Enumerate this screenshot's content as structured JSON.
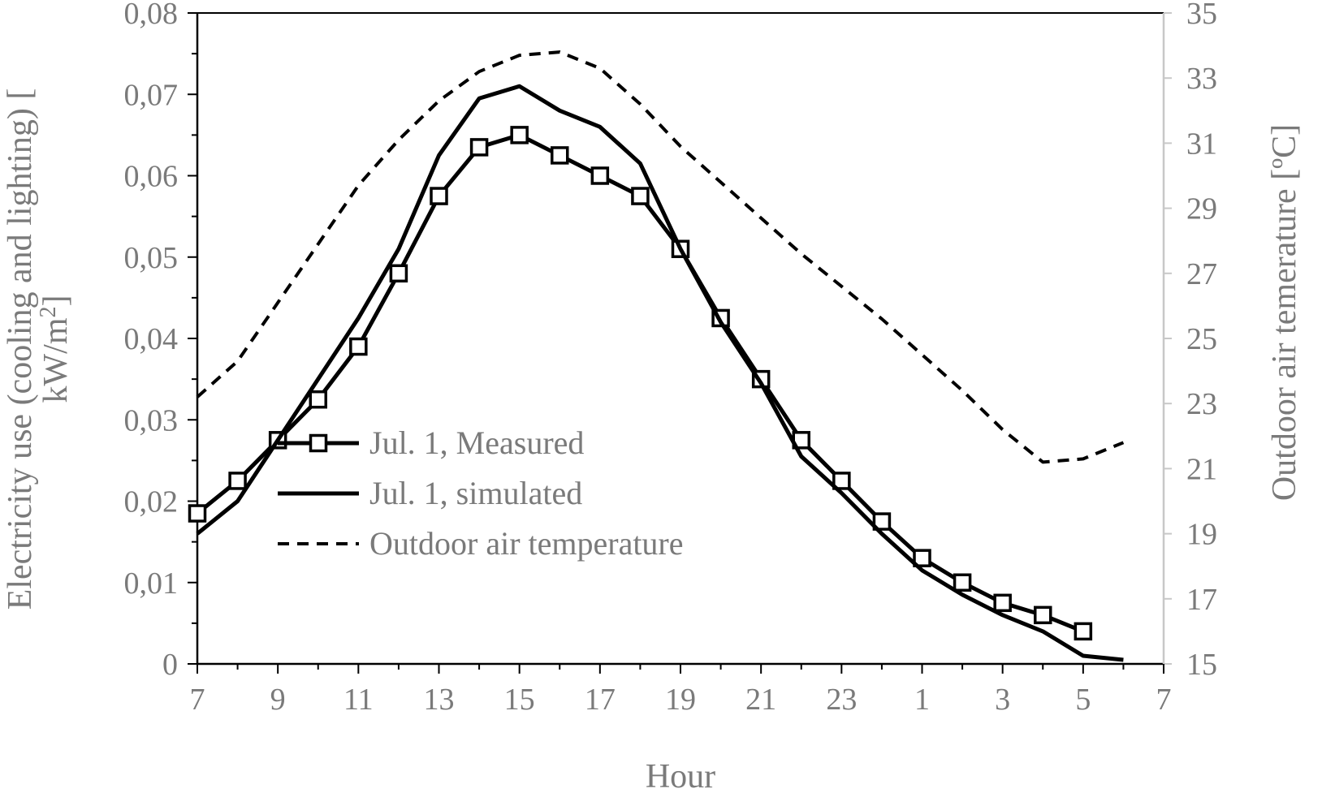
{
  "chart_data": {
    "type": "line",
    "xlabel": "Hour",
    "x_tick_labels": [
      "7",
      "9",
      "11",
      "13",
      "15",
      "17",
      "19",
      "21",
      "23",
      "1",
      "3",
      "5",
      "7"
    ],
    "y_left": {
      "label_line1": "Electricity use (cooling and lighting) [",
      "label_line2_prefix": "kW/m",
      "label_line2_sup": "2",
      "label_line2_suffix": "]",
      "range": [
        0,
        0.08
      ],
      "tick_labels": [
        "0",
        "0,01",
        "0,02",
        "0,03",
        "0,04",
        "0,05",
        "0,06",
        "0,07",
        "0,08"
      ]
    },
    "y_right": {
      "label": "Outdoor air temerature [ºC]",
      "range": [
        15,
        35
      ],
      "tick_labels": [
        "15",
        "17",
        "19",
        "21",
        "23",
        "25",
        "27",
        "29",
        "31",
        "33",
        "35"
      ]
    },
    "legend": {
      "placement": "center-left"
    },
    "series": [
      {
        "name": "Jul. 1, Measured",
        "axis": "left",
        "style": "solid-square-markers",
        "x": [
          7,
          8,
          9,
          10,
          11,
          12,
          13,
          14,
          15,
          16,
          17,
          18,
          19,
          20,
          21,
          22,
          23,
          24,
          25,
          26,
          27,
          28,
          29
        ],
        "values": [
          0.0185,
          0.0225,
          0.0275,
          0.0325,
          0.039,
          0.048,
          0.0575,
          0.0635,
          0.065,
          0.0625,
          0.06,
          0.0575,
          0.051,
          0.0425,
          0.035,
          0.0275,
          0.0225,
          0.0175,
          0.013,
          0.01,
          0.0075,
          0.006,
          0.004
        ]
      },
      {
        "name": "Jul. 1, simulated",
        "axis": "left",
        "style": "solid",
        "x": [
          7,
          8,
          9,
          10,
          11,
          12,
          13,
          14,
          15,
          16,
          17,
          18,
          19,
          20,
          21,
          22,
          23,
          24,
          25,
          26,
          27,
          28,
          29,
          30
        ],
        "values": [
          0.016,
          0.02,
          0.0275,
          0.035,
          0.0425,
          0.051,
          0.0625,
          0.0695,
          0.071,
          0.068,
          0.066,
          0.0615,
          0.051,
          0.042,
          0.0345,
          0.0255,
          0.021,
          0.016,
          0.0115,
          0.0085,
          0.006,
          0.004,
          0.001,
          0.0005
        ]
      },
      {
        "name": "Outdoor air temperature",
        "axis": "right",
        "style": "dashed",
        "x": [
          7,
          8,
          9,
          10,
          11,
          12,
          13,
          14,
          15,
          16,
          17,
          18,
          19,
          20,
          21,
          22,
          23,
          24,
          25,
          26,
          27,
          28,
          29,
          30
        ],
        "values": [
          23.2,
          24.3,
          26.1,
          27.9,
          29.7,
          31.1,
          32.3,
          33.2,
          33.7,
          33.8,
          33.3,
          32.2,
          30.9,
          29.8,
          28.7,
          27.6,
          26.6,
          25.6,
          24.5,
          23.4,
          22.2,
          21.2,
          21.3,
          21.8
        ]
      }
    ]
  }
}
